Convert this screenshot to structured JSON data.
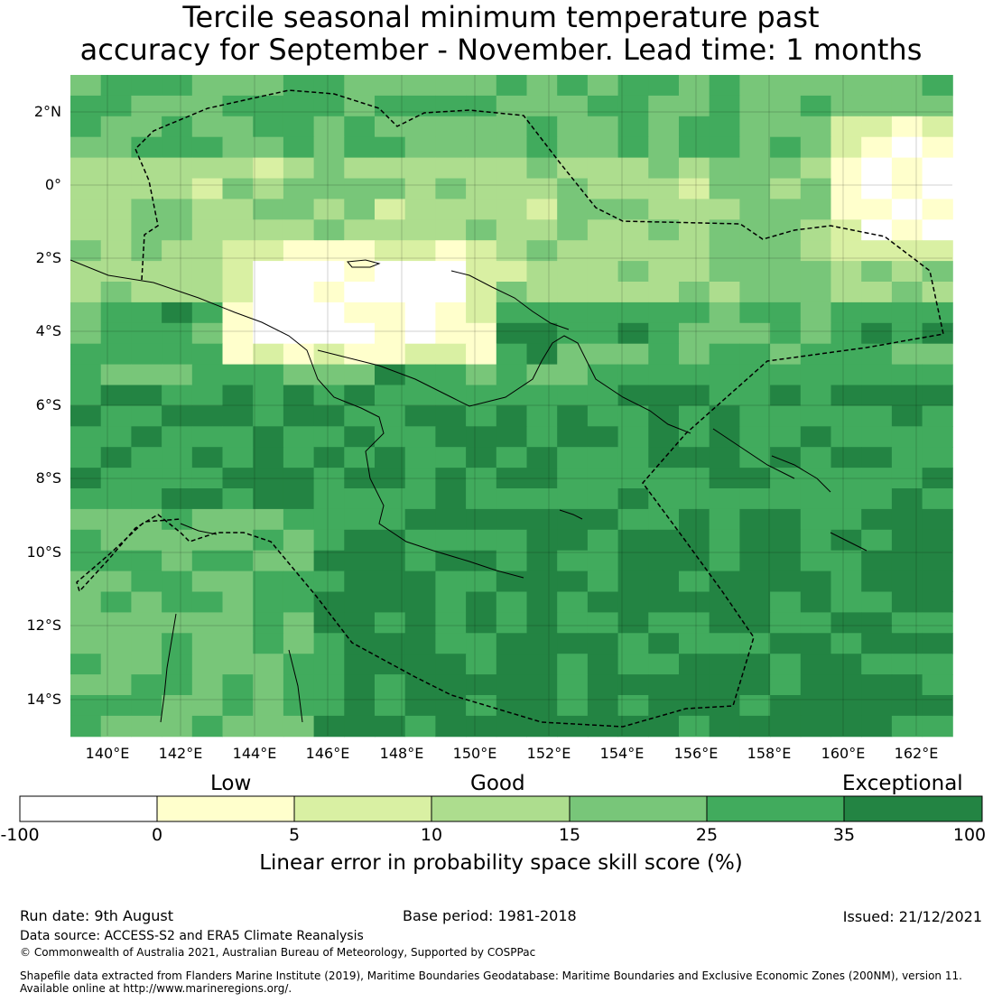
{
  "title_line1": "Tercile seasonal minimum temperature past",
  "title_line2": "accuracy for September - November. Lead time: 1 months",
  "axes": {
    "lon_ticks": [
      "140°E",
      "142°E",
      "144°E",
      "146°E",
      "148°E",
      "150°E",
      "152°E",
      "154°E",
      "156°E",
      "158°E",
      "160°E",
      "162°E"
    ],
    "lat_ticks": [
      "2°N",
      "0°",
      "2°S",
      "4°S",
      "6°S",
      "8°S",
      "10°S",
      "12°S",
      "14°S"
    ]
  },
  "colorbar": {
    "categories": [
      "Low",
      "Good",
      "Exceptional"
    ],
    "ticks": [
      "-100",
      "0",
      "5",
      "10",
      "15",
      "25",
      "35",
      "100"
    ],
    "colors": [
      "#ffffff",
      "#ffffcc",
      "#d9f0a3",
      "#addd8e",
      "#78c679",
      "#41ab5d",
      "#238443"
    ],
    "label": "Linear error in probability space skill score (%)"
  },
  "footer": {
    "run_date": "Run date: 9th August",
    "base_period": "Base period: 1981-2018",
    "issued": "Issued: 21/12/2021",
    "data_source": "Data source: ACCESS-S2 and ERA5 Climate Reanalysis",
    "copyright": "© Commonwealth of Australia 2021, Australian Bureau of Meteorology, Supported by COSPPac",
    "shapefile_1": "Shapefile data extracted from Flanders Marine Institute (2019), Maritime Boundaries Geodatabase: Maritime Boundaries and Exclusive Economic Zones (200NM), version 11.",
    "shapefile_2": "Available online at http://www.marineregions.org/."
  }
}
